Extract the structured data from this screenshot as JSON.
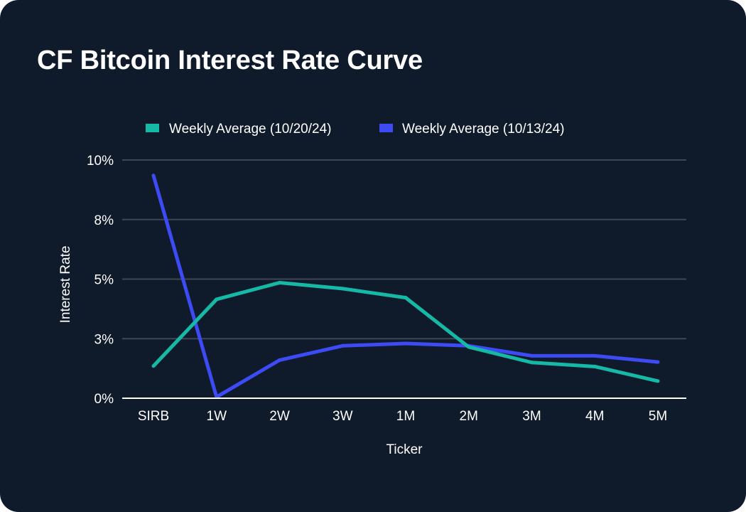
{
  "header": {
    "title": "CF Bitcoin Interest Rate Curve"
  },
  "colors": {
    "background": "#0f1a2b",
    "grid": "#3f4654",
    "axis": "#ffffff",
    "text": "#ffffff"
  },
  "chart_data": {
    "type": "line",
    "title": "CF Bitcoin Interest Rate Curve",
    "xlabel": "Ticker",
    "ylabel": "Interest Rate",
    "categories": [
      "SIRB",
      "1W",
      "2W",
      "3W",
      "1M",
      "2M",
      "3M",
      "4M",
      "5M"
    ],
    "yticks": [
      0,
      2.5,
      5,
      7.5,
      10
    ],
    "ytick_labels": [
      "0%",
      "3%",
      "5%",
      "8%",
      "10%"
    ],
    "ylim": [
      0,
      10
    ],
    "grid": true,
    "legend_position": "top-center",
    "series": [
      {
        "name": "Weekly Average (10/20/24)",
        "color": "#16b8a6",
        "values": [
          1.35,
          4.15,
          4.85,
          4.6,
          4.22,
          2.15,
          1.5,
          1.33,
          0.72
        ]
      },
      {
        "name": "Weekly Average (10/13/24)",
        "color": "#3d4bf5",
        "values": [
          9.35,
          0.05,
          1.6,
          2.2,
          2.3,
          2.2,
          1.78,
          1.78,
          1.52
        ]
      }
    ]
  }
}
